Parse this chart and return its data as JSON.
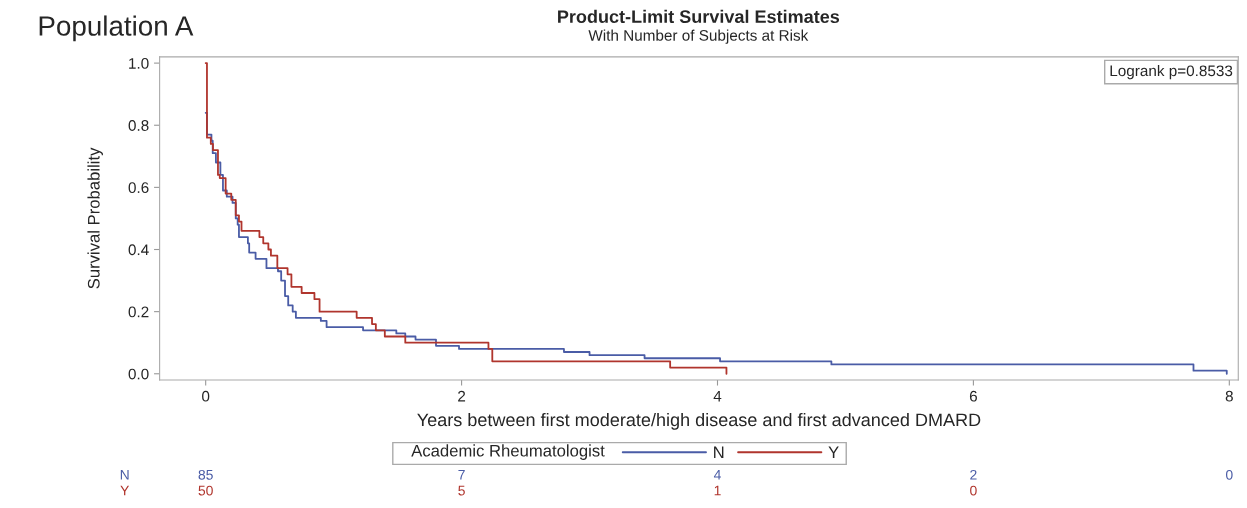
{
  "chart_data": {
    "type": "step",
    "title": "Product-Limit Survival Estimates",
    "subtitle": "With Number of Subjects at Risk",
    "xlabel": "Years between first moderate/high disease and first advanced DMARD",
    "ylabel": "Survival Probability",
    "legend_title": "Academic Rheumatologist",
    "legend": "bottom",
    "grid": false,
    "xlim": [
      -0.36,
      8.07
    ],
    "xticks": [
      0,
      2,
      4,
      6,
      8
    ],
    "ylim": [
      -0.02,
      1.02
    ],
    "yticks": [
      {
        "value": 0,
        "label": "0.0"
      },
      {
        "value": 0.2,
        "label": "0.2"
      },
      {
        "value": 0.4,
        "label": "0.4"
      },
      {
        "value": 0.6,
        "label": "0.6"
      },
      {
        "value": 0.8,
        "label": "0.8"
      },
      {
        "value": 1,
        "label": "1.0"
      }
    ],
    "series": [
      {
        "name": "N",
        "color": "#4a5ca6",
        "x": [
          0,
          0.01,
          0.045,
          0.055,
          0.08,
          0.115,
          0.135,
          0.165,
          0.21,
          0.235,
          0.25,
          0.26,
          0.33,
          0.34,
          0.39,
          0.475,
          0.565,
          0.59,
          0.62,
          0.645,
          0.68,
          0.705,
          0.9,
          0.945,
          1.23,
          1.49,
          1.56,
          1.64,
          1.8,
          1.98,
          2.8,
          3.0,
          3.43,
          4.02,
          4.89,
          7.72,
          7.98
        ],
        "values": [
          0.84,
          0.77,
          0.75,
          0.71,
          0.68,
          0.64,
          0.59,
          0.57,
          0.55,
          0.5,
          0.48,
          0.44,
          0.42,
          0.39,
          0.37,
          0.34,
          0.33,
          0.3,
          0.25,
          0.22,
          0.2,
          0.18,
          0.17,
          0.15,
          0.14,
          0.13,
          0.12,
          0.11,
          0.09,
          0.08,
          0.07,
          0.06,
          0.05,
          0.04,
          0.03,
          0.01,
          0.0
        ]
      },
      {
        "name": "Y",
        "color": "#b0352d",
        "x": [
          0,
          0.01,
          0.04,
          0.057,
          0.096,
          0.11,
          0.156,
          0.2,
          0.235,
          0.26,
          0.28,
          0.42,
          0.45,
          0.49,
          0.51,
          0.56,
          0.64,
          0.67,
          0.75,
          0.85,
          0.89,
          1.18,
          1.3,
          1.33,
          1.4,
          1.56,
          2.21,
          2.24,
          3.63,
          4.07
        ],
        "values": [
          1.0,
          0.76,
          0.74,
          0.72,
          0.64,
          0.63,
          0.58,
          0.56,
          0.51,
          0.49,
          0.46,
          0.44,
          0.42,
          0.4,
          0.38,
          0.34,
          0.32,
          0.28,
          0.26,
          0.24,
          0.2,
          0.18,
          0.16,
          0.14,
          0.12,
          0.1,
          0.08,
          0.04,
          0.02,
          0.0
        ]
      }
    ],
    "annotations": [
      "Population A",
      "Logrank p=0.8533",
      "N",
      "85",
      "7",
      "4",
      "2",
      "0",
      "Y",
      "50",
      "5",
      "1",
      "0"
    ]
  }
}
